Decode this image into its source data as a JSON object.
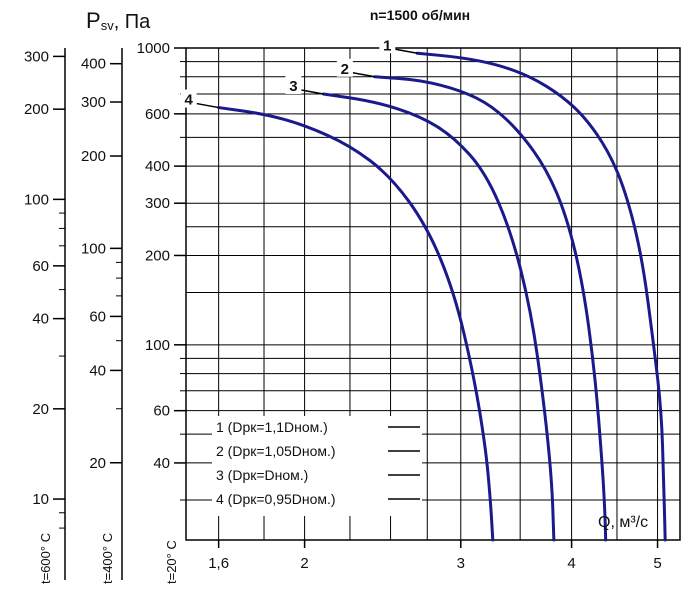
{
  "chart_data": {
    "type": "line",
    "title": "",
    "subtitle": "n=1500 об/мин",
    "ylabel_symbol": "P",
    "ylabel_sub": "sv",
    "ylabel_unit": ", Па",
    "xlabel": "Q, м³/с",
    "x_scale": "log",
    "y_scale": "log",
    "xlim": [
      1.47,
      5.3
    ],
    "x_ticks": [
      {
        "value": 1.6,
        "label": "1,6"
      },
      {
        "value": 2,
        "label": "2"
      },
      {
        "value": 3,
        "label": "3"
      },
      {
        "value": 4,
        "label": "4"
      },
      {
        "value": 5,
        "label": "5"
      }
    ],
    "y_axes": [
      {
        "id": "t20",
        "caption": "t=20° C",
        "ylim": [
          22,
          1000
        ],
        "ticks": [
          {
            "value": 1000,
            "label": "1000"
          },
          {
            "value": 600,
            "label": "600"
          },
          {
            "value": 400,
            "label": "400"
          },
          {
            "value": 300,
            "label": "300"
          },
          {
            "value": 200,
            "label": "200"
          },
          {
            "value": 100,
            "label": "100"
          },
          {
            "value": 60,
            "label": "60"
          },
          {
            "value": 40,
            "label": "40"
          }
        ]
      },
      {
        "id": "t400",
        "caption": "t=400° C",
        "ylim": [
          11.2,
          450
        ],
        "ticks": [
          {
            "value": 400,
            "label": "400"
          },
          {
            "value": 300,
            "label": "300"
          },
          {
            "value": 200,
            "label": "200"
          },
          {
            "value": 100,
            "label": "100"
          },
          {
            "value": 60,
            "label": "60"
          },
          {
            "value": 40,
            "label": "40"
          },
          {
            "value": 20,
            "label": "20"
          }
        ]
      },
      {
        "id": "t600",
        "caption": "t=600° C",
        "ylim": [
          7.3,
          320
        ],
        "ticks": [
          {
            "value": 300,
            "label": "300"
          },
          {
            "value": 200,
            "label": "200"
          },
          {
            "value": 100,
            "label": "100"
          },
          {
            "value": 60,
            "label": "60"
          },
          {
            "value": 40,
            "label": "40"
          },
          {
            "value": 20,
            "label": "20"
          },
          {
            "value": 10,
            "label": "10"
          }
        ]
      }
    ],
    "grid": true,
    "series": [
      {
        "name": "1 (Dрк=1,1Dном.)",
        "curve_label": "1",
        "color": "#1a1a8c",
        "x": [
          2.68,
          3.0,
          3.3,
          3.6,
          3.9,
          4.15,
          4.4,
          4.6,
          4.8,
          4.95,
          5.05,
          5.08,
          5.1
        ],
        "y": [
          960,
          930,
          880,
          800,
          690,
          580,
          450,
          330,
          200,
          100,
          60,
          35,
          22
        ]
      },
      {
        "name": "2 (Dрк=1,05Dном.)",
        "curve_label": "2",
        "color": "#1a1a8c",
        "x": [
          2.4,
          2.7,
          3.0,
          3.25,
          3.5,
          3.75,
          3.95,
          4.12,
          4.25,
          4.33,
          4.36,
          4.37
        ],
        "y": [
          800,
          780,
          720,
          640,
          520,
          390,
          270,
          160,
          80,
          40,
          28,
          22
        ]
      },
      {
        "name": "3 (Dрк=Dном.)",
        "curve_label": "3",
        "color": "#1a1a8c",
        "x": [
          2.1,
          2.4,
          2.7,
          2.95,
          3.2,
          3.42,
          3.6,
          3.72,
          3.8,
          3.82
        ],
        "y": [
          700,
          660,
          590,
          500,
          380,
          240,
          130,
          65,
          35,
          22
        ]
      },
      {
        "name": "4 (Dрк=0,95Dном.)",
        "curve_label": "4",
        "color": "#1a1a8c",
        "x": [
          1.6,
          1.8,
          2.0,
          2.25,
          2.5,
          2.75,
          2.95,
          3.1,
          3.2,
          3.24,
          3.26
        ],
        "y": [
          630,
          600,
          550,
          470,
          370,
          250,
          150,
          80,
          45,
          30,
          22
        ]
      }
    ]
  }
}
